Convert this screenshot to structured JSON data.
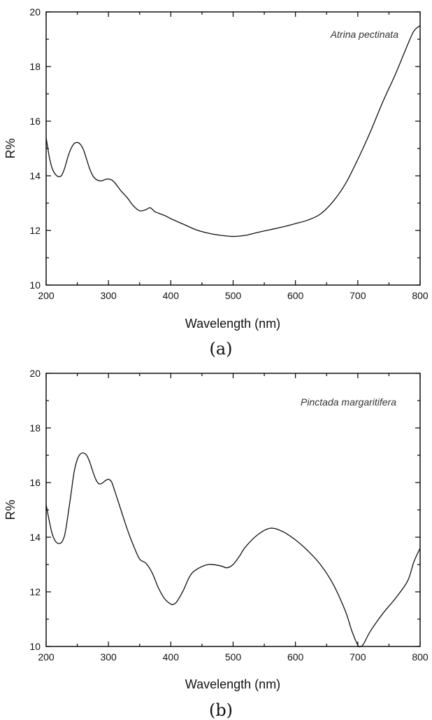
{
  "chart_data": [
    {
      "type": "line",
      "panel_label": "(a)",
      "annotation": "Atrina pectinata",
      "xlabel": "Wavelength (nm)",
      "ylabel": "R%",
      "xlim": [
        200,
        800
      ],
      "ylim": [
        10,
        20
      ],
      "xticks": [
        200,
        300,
        400,
        500,
        600,
        700,
        800
      ],
      "yticks": [
        10,
        12,
        14,
        16,
        18,
        20
      ],
      "grid": false,
      "series": [
        {
          "x": [
            200,
            205,
            210,
            215,
            220,
            225,
            230,
            235,
            240,
            245,
            250,
            255,
            260,
            265,
            270,
            275,
            280,
            285,
            290,
            295,
            300,
            305,
            310,
            315,
            320,
            330,
            340,
            350,
            360,
            367,
            375,
            390,
            400,
            420,
            440,
            460,
            480,
            500,
            520,
            540,
            560,
            580,
            600,
            620,
            640,
            660,
            680,
            700,
            720,
            740,
            760,
            780,
            790,
            800
          ],
          "y": [
            15.4,
            14.7,
            14.25,
            14.05,
            13.97,
            14.02,
            14.3,
            14.7,
            15.0,
            15.18,
            15.22,
            15.15,
            14.95,
            14.6,
            14.25,
            14.0,
            13.87,
            13.82,
            13.82,
            13.87,
            13.88,
            13.85,
            13.75,
            13.6,
            13.45,
            13.2,
            12.9,
            12.72,
            12.76,
            12.83,
            12.68,
            12.55,
            12.43,
            12.23,
            12.03,
            11.9,
            11.82,
            11.78,
            11.82,
            11.93,
            12.03,
            12.13,
            12.25,
            12.38,
            12.6,
            13.05,
            13.7,
            14.6,
            15.6,
            16.7,
            17.7,
            18.8,
            19.3,
            19.5
          ]
        }
      ]
    },
    {
      "type": "line",
      "panel_label": "(b)",
      "annotation": "Pinctada margaritifera",
      "xlabel": "Wavelength (nm)",
      "ylabel": "R%",
      "xlim": [
        200,
        800
      ],
      "ylim": [
        10,
        20
      ],
      "xticks": [
        200,
        300,
        400,
        500,
        600,
        700,
        800
      ],
      "yticks": [
        10,
        12,
        14,
        16,
        18,
        20
      ],
      "grid": false,
      "series": [
        {
          "x": [
            200,
            205,
            210,
            215,
            220,
            225,
            230,
            235,
            240,
            245,
            250,
            255,
            260,
            265,
            270,
            275,
            280,
            285,
            290,
            295,
            300,
            305,
            310,
            320,
            330,
            340,
            350,
            360,
            370,
            380,
            390,
            400,
            405,
            410,
            420,
            430,
            440,
            460,
            480,
            490,
            500,
            510,
            520,
            540,
            560,
            580,
            600,
            620,
            640,
            660,
            680,
            690,
            700,
            705,
            710,
            720,
            740,
            760,
            780,
            790,
            800
          ],
          "y": [
            15.2,
            14.6,
            14.1,
            13.85,
            13.77,
            13.82,
            14.1,
            14.8,
            15.6,
            16.4,
            16.85,
            17.05,
            17.08,
            17.0,
            16.75,
            16.4,
            16.1,
            15.95,
            15.98,
            16.07,
            16.12,
            16.02,
            15.7,
            15.0,
            14.3,
            13.7,
            13.2,
            13.05,
            12.7,
            12.15,
            11.75,
            11.55,
            11.55,
            11.65,
            12.05,
            12.55,
            12.8,
            13.0,
            12.95,
            12.88,
            13.0,
            13.3,
            13.65,
            14.1,
            14.33,
            14.2,
            13.9,
            13.5,
            13.0,
            12.3,
            11.3,
            10.6,
            10.05,
            10.0,
            10.12,
            10.55,
            11.2,
            11.75,
            12.4,
            13.1,
            13.6
          ]
        }
      ]
    }
  ]
}
